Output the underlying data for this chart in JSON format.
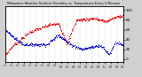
{
  "title": "Milwaukee Weather Outdoor Humidity vs. Temperature Every 5 Minutes",
  "bg_color": "#d0d0d0",
  "plot_bg_color": "#ffffff",
  "red_color": "#dd0000",
  "blue_color": "#0000cc",
  "grid_color": "#aaaaaa",
  "right_yticks": [
    0,
    20,
    40,
    60,
    80,
    100
  ],
  "right_ylabels": [
    "0",
    "20",
    "40",
    "60",
    "80",
    "100"
  ],
  "ylim": [
    -5,
    108
  ],
  "n_points": 288,
  "marker_size": 0.7
}
